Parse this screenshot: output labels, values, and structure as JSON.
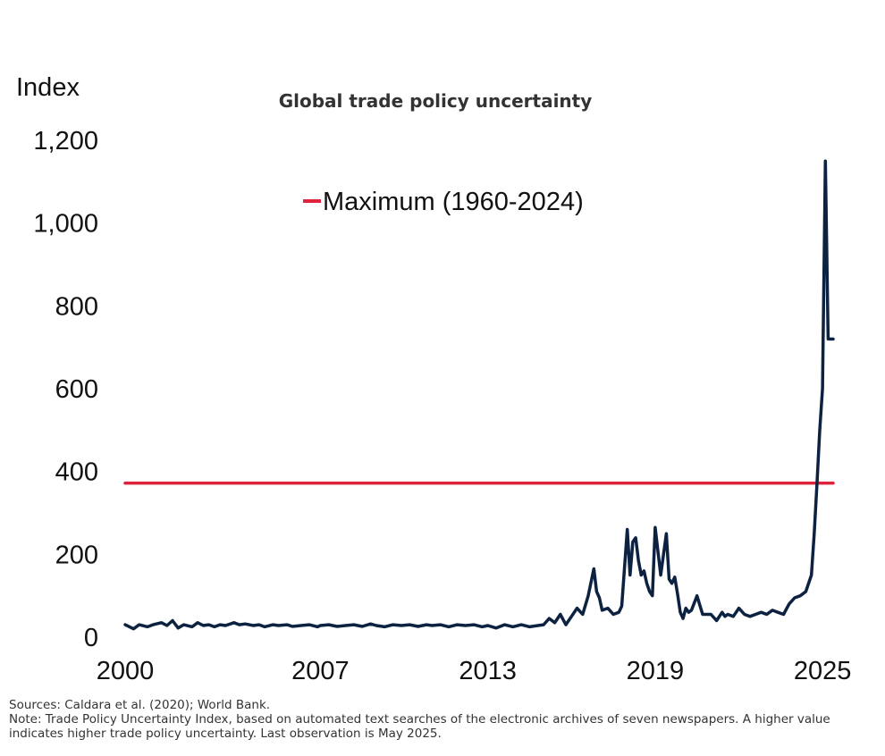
{
  "chart_data": {
    "type": "line",
    "title": "Global trade policy uncertainty",
    "ylabel": "Index",
    "xlabel": "",
    "ylim": [
      0,
      1200
    ],
    "yticks": [
      0,
      200,
      400,
      600,
      800,
      1000,
      1200
    ],
    "ytick_labels": [
      "0",
      "200",
      "400",
      "600",
      "800",
      "1,000",
      "1,200"
    ],
    "xlim": [
      2000,
      2025.38
    ],
    "xticks": [
      2000,
      2007,
      2013,
      2019,
      2025
    ],
    "xtick_labels": [
      "2000",
      "2007",
      "2013",
      "2019",
      "2025"
    ],
    "grid": false,
    "legend_position": "top-center",
    "series": [
      {
        "name": "",
        "color": "#0d2240",
        "x": [
          2000.0,
          2000.3,
          2000.5,
          2000.8,
          2001.0,
          2001.3,
          2001.5,
          2001.7,
          2001.9,
          2002.1,
          2002.4,
          2002.6,
          2002.8,
          2003.0,
          2003.2,
          2003.4,
          2003.6,
          2003.9,
          2004.1,
          2004.3,
          2004.6,
          2004.8,
          2005.0,
          2005.3,
          2005.5,
          2005.8,
          2006.0,
          2006.3,
          2006.6,
          2006.9,
          2007.0,
          2007.3,
          2007.6,
          2007.9,
          2008.2,
          2008.5,
          2008.8,
          2009.0,
          2009.3,
          2009.6,
          2009.9,
          2010.2,
          2010.5,
          2010.8,
          2011.0,
          2011.3,
          2011.6,
          2011.9,
          2012.2,
          2012.5,
          2012.8,
          2013.0,
          2013.3,
          2013.6,
          2013.9,
          2014.2,
          2014.5,
          2014.8,
          2015.0,
          2015.2,
          2015.4,
          2015.6,
          2015.8,
          2016.0,
          2016.2,
          2016.4,
          2016.6,
          2016.8,
          2016.9,
          2017.0,
          2017.1,
          2017.3,
          2017.5,
          2017.7,
          2017.8,
          2018.0,
          2018.1,
          2018.2,
          2018.3,
          2018.4,
          2018.5,
          2018.6,
          2018.7,
          2018.8,
          2018.9,
          2019.0,
          2019.2,
          2019.4,
          2019.5,
          2019.6,
          2019.7,
          2019.8,
          2019.9,
          2020.0,
          2020.1,
          2020.2,
          2020.3,
          2020.5,
          2020.7,
          2021.0,
          2021.2,
          2021.4,
          2021.5,
          2021.6,
          2021.8,
          2022.0,
          2022.2,
          2022.4,
          2022.6,
          2022.8,
          2023.0,
          2023.2,
          2023.4,
          2023.6,
          2023.8,
          2024.0,
          2024.2,
          2024.4,
          2024.6,
          2024.7,
          2024.8,
          2024.9,
          2025.0,
          2025.1,
          2025.2,
          2025.3,
          2025.38
        ],
        "values": [
          30,
          20,
          30,
          25,
          30,
          35,
          28,
          40,
          22,
          30,
          25,
          35,
          28,
          30,
          25,
          30,
          28,
          35,
          30,
          32,
          28,
          30,
          25,
          30,
          28,
          30,
          26,
          28,
          30,
          25,
          28,
          30,
          26,
          28,
          30,
          26,
          32,
          28,
          25,
          30,
          28,
          30,
          26,
          30,
          28,
          30,
          25,
          30,
          28,
          30,
          25,
          28,
          22,
          30,
          25,
          30,
          25,
          28,
          30,
          45,
          35,
          55,
          30,
          50,
          70,
          55,
          100,
          165,
          110,
          95,
          65,
          70,
          55,
          60,
          75,
          260,
          150,
          230,
          240,
          185,
          150,
          160,
          130,
          110,
          100,
          265,
          150,
          250,
          140,
          130,
          145,
          105,
          60,
          45,
          70,
          60,
          65,
          100,
          55,
          55,
          40,
          60,
          50,
          55,
          50,
          70,
          55,
          50,
          55,
          60,
          55,
          65,
          60,
          55,
          80,
          95,
          100,
          110,
          150,
          250,
          370,
          500,
          600,
          1150,
          720,
          720,
          720
        ]
      },
      {
        "name": "Maximum (1960-2024)",
        "color": "#e0233d",
        "x": [
          2000,
          2025.38
        ],
        "values": [
          372,
          372
        ]
      }
    ]
  },
  "footer": {
    "sources": "Sources: Caldara et al. (2020); World Bank.",
    "note": "Note: Trade Policy Uncertainty Index, based on automated text searches of the electronic archives of seven newspapers. A higher value indicates higher trade policy uncertainty. Last observation is May 2025."
  }
}
